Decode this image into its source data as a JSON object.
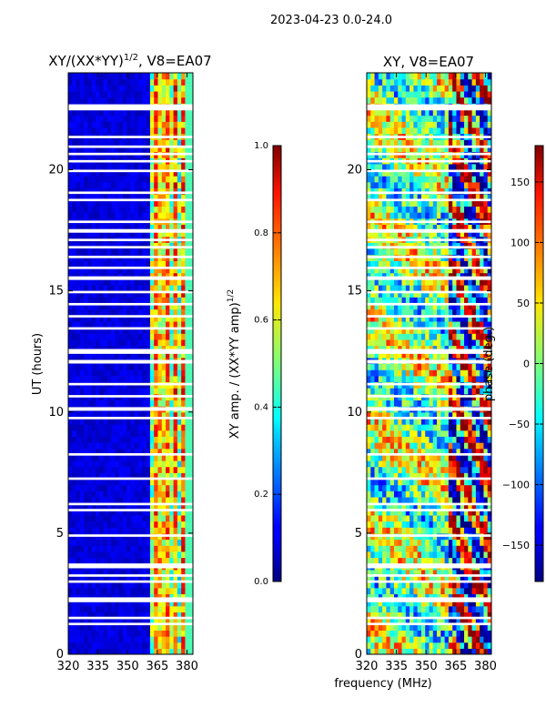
{
  "suptitle": "2023-04-23 0.0-24.0",
  "chart_data": [
    {
      "type": "heatmap",
      "title_text": "XY/(XX*YY)",
      "title_exp": "1/2",
      "title_suffix": ", V8=EA07",
      "xlabel": "",
      "ylabel": "UT (hours)",
      "xlim": [
        320,
        383
      ],
      "ylim": [
        0,
        24
      ],
      "xticks": [
        320,
        335,
        350,
        365,
        380
      ],
      "yticks": [
        0,
        5,
        10,
        15,
        20
      ],
      "quantity": "amplitude",
      "gap_bands_hours": [
        [
          22.45,
          22.7
        ],
        [
          21.3,
          21.4
        ],
        [
          20.9,
          21.0
        ],
        [
          20.6,
          20.7
        ],
        [
          20.3,
          20.4
        ],
        [
          19.9,
          20.0
        ],
        [
          19.0,
          19.1
        ],
        [
          18.7,
          18.8
        ],
        [
          17.8,
          17.9
        ],
        [
          17.4,
          17.55
        ],
        [
          17.05,
          17.15
        ],
        [
          16.75,
          16.85
        ],
        [
          16.35,
          16.45
        ],
        [
          15.9,
          16.0
        ],
        [
          15.45,
          15.6
        ],
        [
          14.9,
          15.0
        ],
        [
          14.4,
          14.5
        ],
        [
          13.9,
          14.0
        ],
        [
          13.4,
          13.5
        ],
        [
          12.4,
          12.6
        ],
        [
          12.0,
          12.15
        ],
        [
          11.1,
          11.2
        ],
        [
          10.6,
          10.7
        ],
        [
          10.05,
          10.2
        ],
        [
          9.7,
          9.8
        ],
        [
          8.2,
          8.3
        ],
        [
          7.2,
          7.3
        ],
        [
          6.15,
          6.25
        ],
        [
          5.9,
          6.0
        ],
        [
          4.85,
          4.95
        ],
        [
          3.55,
          3.75
        ],
        [
          3.2,
          3.3
        ],
        [
          2.95,
          3.05
        ],
        [
          2.15,
          2.35
        ],
        [
          1.45,
          1.55
        ],
        [
          1.2,
          1.3
        ]
      ]
    },
    {
      "type": "heatmap",
      "title_text": "XY, V8=EA07",
      "xlabel": "",
      "ylabel": "",
      "xlim": [
        320,
        383
      ],
      "ylim": [
        0,
        24
      ],
      "xticks": [
        320,
        335,
        350,
        365,
        380
      ],
      "yticks": [
        0,
        5,
        10,
        15,
        20
      ],
      "quantity": "phase"
    }
  ],
  "colorbars": [
    {
      "label_text": "XY amp. / (XX*YY amp)",
      "label_exp": "1/2",
      "range": [
        0.0,
        1.0
      ],
      "ticks": [
        "0.0",
        "0.2",
        "0.4",
        "0.6",
        "0.8",
        "1.0"
      ]
    },
    {
      "label_text": "phase (deg.)",
      "range": [
        -180,
        180
      ],
      "ticks": [
        "−150",
        "−100",
        "−50",
        "0",
        "50",
        "100",
        "150"
      ],
      "tick_values": [
        -150,
        -100,
        -50,
        0,
        50,
        100,
        150
      ]
    }
  ],
  "shared_xlabel": "frequency (MHz)"
}
